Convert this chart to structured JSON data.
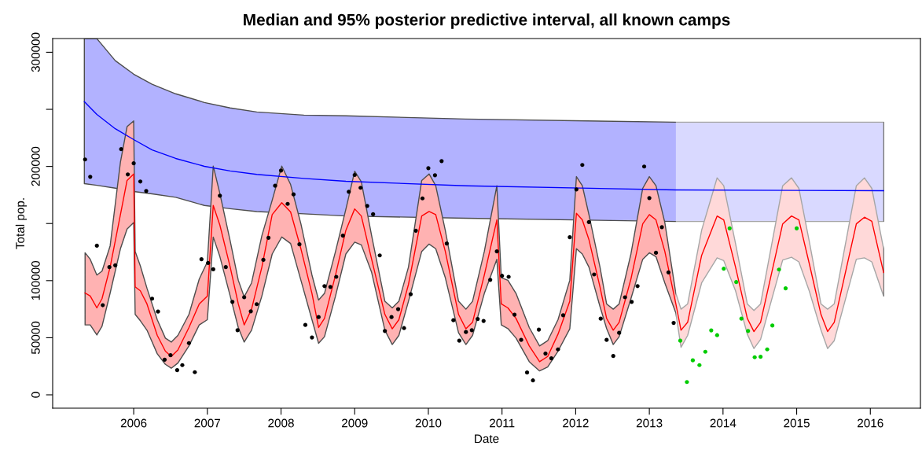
{
  "chart_data": {
    "type": "line",
    "title": "Median and 95% posterior predictive interval, all known camps",
    "xlabel": "Date",
    "ylabel": "Total pop.",
    "xlim": [
      2004.9,
      2016.68
    ],
    "ylim": [
      -11700,
      312000
    ],
    "xticks": [
      2006,
      2007,
      2008,
      2009,
      2010,
      2011,
      2012,
      2013,
      2014,
      2015,
      2016
    ],
    "yticks": [
      0,
      50000,
      100000,
      {
        "value": 150000,
        "label": null
      },
      200000,
      {
        "value": 250000,
        "label": null
      },
      300000
    ],
    "grid": false,
    "legend": false,
    "bands": [
      {
        "axis": "x",
        "from": 2013.36,
        "to": 2016.18,
        "color": "#ffffff"
      }
    ],
    "series": [
      {
        "color": "#0000ff",
        "x": [
          2005.33,
          2005.5,
          2005.75,
          2006.0,
          2006.25,
          2006.57,
          2006.96,
          2007.31,
          2007.67,
          2008.31,
          2008.88,
          2010.51,
          2013.36,
          2016.18
        ],
        "values": [
          256700,
          245500,
          233000,
          223500,
          214500,
          207000,
          200100,
          196000,
          193000,
          189500,
          187000,
          183000,
          179400,
          178700
        ],
        "upper": [
          312000,
          311900,
          292600,
          280800,
          271900,
          263600,
          256000,
          251200,
          247700,
          244900,
          244300,
          241500,
          238700,
          238700
        ],
        "lower": [
          184900,
          183500,
          181000,
          178000,
          176000,
          173000,
          165800,
          163000,
          160500,
          158500,
          156600,
          154600,
          151800,
          151800
        ]
      },
      {
        "color": "#ff0000",
        "x": [
          2005.34,
          2005.41,
          2005.5,
          2005.57,
          2005.68,
          2005.82,
          2005.91,
          2006.0,
          2006.02,
          2006.09,
          2006.18,
          2006.32,
          2006.43,
          2006.51,
          2006.6,
          2006.75,
          2006.89,
          2007.0,
          2007.08,
          2007.17,
          2007.31,
          2007.42,
          2007.5,
          2007.6,
          2007.74,
          2007.88,
          2008.01,
          2008.13,
          2008.27,
          2008.42,
          2008.51,
          2008.59,
          2008.74,
          2008.88,
          2009.0,
          2009.09,
          2009.23,
          2009.41,
          2009.51,
          2009.6,
          2009.73,
          2009.91,
          2010.01,
          2010.1,
          2010.23,
          2010.41,
          2010.51,
          2010.6,
          2010.76,
          2010.93,
          2010.99,
          2011.08,
          2011.19,
          2011.37,
          2011.51,
          2011.62,
          2011.76,
          2011.92,
          2012.01,
          2012.09,
          2012.18,
          2012.33,
          2012.42,
          2012.51,
          2012.59,
          2012.75,
          2012.91,
          2013.0,
          2013.09,
          2013.21,
          2013.36,
          2013.43,
          2013.52,
          2013.71,
          2013.92,
          2014.01,
          2014.17,
          2014.33,
          2014.42,
          2014.51,
          2014.81,
          2014.93,
          2015.03,
          2015.17,
          2015.33,
          2015.42,
          2015.51,
          2015.81,
          2015.92,
          2016.02,
          2016.18
        ],
        "upper": [
          124400,
          118700,
          104900,
          108300,
          130400,
          203800,
          234800,
          239900,
          125600,
          113000,
          93400,
          65800,
          49700,
          46200,
          52000,
          70400,
          101400,
          116400,
          200300,
          176200,
          134800,
          100300,
          85800,
          98000,
          139400,
          170400,
          200300,
          184200,
          149700,
          104900,
          83000,
          88800,
          125600,
          162400,
          195800,
          186500,
          139400,
          81900,
          76100,
          81900,
          111800,
          187700,
          193400,
          183100,
          144000,
          81900,
          75000,
          81900,
          125600,
          183100,
          102600,
          100300,
          88800,
          58900,
          42800,
          47400,
          65800,
          100300,
          191100,
          183100,
          157800,
          111800,
          79600,
          75000,
          79600,
          123300,
          180800,
          191100,
          183100,
          150900,
          88800,
          75000,
          79600,
          144200,
          190000,
          183100,
          132500,
          79600,
          73800,
          79600,
          183100,
          190000,
          180800,
          134800,
          79600,
          75000,
          79600,
          183100,
          190000,
          180800,
          127900
        ],
        "lower": [
          61200,
          61200,
          52400,
          60000,
          89000,
          127900,
          145100,
          150900,
          70400,
          64900,
          56600,
          35900,
          26700,
          23300,
          27800,
          42800,
          61200,
          65800,
          138200,
          121000,
          86500,
          58900,
          46200,
          56600,
          86500,
          123300,
          138200,
          132500,
          100300,
          65800,
          45100,
          50900,
          86500,
          123300,
          133700,
          131300,
          107200,
          56600,
          44000,
          52000,
          81900,
          125600,
          132000,
          127900,
          102600,
          54300,
          44000,
          52000,
          88800,
          118700,
          61200,
          58000,
          49700,
          29000,
          20900,
          24400,
          38200,
          57800,
          127900,
          123300,
          111800,
          77300,
          58000,
          44000,
          50900,
          84200,
          118700,
          124400,
          121000,
          98000,
          71600,
          41600,
          52000,
          98000,
          119900,
          117500,
          91100,
          53100,
          40500,
          48500,
          118000,
          120500,
          116400,
          91100,
          56600,
          40500,
          47400,
          118700,
          119900,
          116400,
          86500
        ],
        "values": [
          89200,
          86500,
          76100,
          84200,
          111800,
          157800,
          187700,
          193400,
          94500,
          91100,
          79600,
          52000,
          38200,
          33600,
          39300,
          58900,
          79600,
          86500,
          165800,
          148600,
          111800,
          79600,
          61200,
          75000,
          111800,
          157800,
          168200,
          160100,
          127900,
          88800,
          58900,
          66900,
          104900,
          144000,
          162800,
          156600,
          118700,
          70400,
          57800,
          65800,
          96600,
          156600,
          160600,
          157800,
          125600,
          70400,
          57800,
          63500,
          104900,
          153200,
          79600,
          76100,
          66900,
          42800,
          29000,
          33600,
          53100,
          81900,
          158900,
          153200,
          135900,
          94500,
          66900,
          56600,
          63500,
          101400,
          149700,
          157800,
          153200,
          125600,
          79600,
          56600,
          63500,
          122100,
          156600,
          153200,
          111800,
          66900,
          55400,
          63500,
          149700,
          156600,
          153200,
          115200,
          70400,
          55400,
          63500,
          149700,
          155500,
          152000,
          107200
        ]
      },
      {
        "type": "scatter",
        "color": "#000000",
        "marker": "circle",
        "x": [
          2005.34,
          2005.41,
          2005.5,
          2005.58,
          2005.67,
          2005.75,
          2005.83,
          2005.92,
          2006.0,
          2006.09,
          2006.17,
          2006.25,
          2006.33,
          2006.42,
          2006.5,
          2006.59,
          2006.66,
          2006.75,
          2006.83,
          2006.92,
          2007.01,
          2007.08,
          2007.17,
          2007.25,
          2007.34,
          2007.41,
          2007.5,
          2007.59,
          2007.67,
          2007.76,
          2007.83,
          2007.92,
          2008.0,
          2008.09,
          2008.17,
          2008.25,
          2008.33,
          2008.42,
          2008.51,
          2008.59,
          2008.67,
          2008.75,
          2008.84,
          2008.92,
          2009.0,
          2009.08,
          2009.17,
          2009.25,
          2009.34,
          2009.41,
          2009.5,
          2009.59,
          2009.67,
          2009.76,
          2009.83,
          2009.92,
          2010.0,
          2010.09,
          2010.18,
          2010.25,
          2010.34,
          2010.42,
          2010.51,
          2010.59,
          2010.67,
          2010.75,
          2010.84,
          2010.93,
          2011.0,
          2011.09,
          2011.17,
          2011.26,
          2011.34,
          2011.42,
          2011.5,
          2011.59,
          2011.67,
          2011.76,
          2011.83,
          2011.92,
          2012.01,
          2012.09,
          2012.18,
          2012.25,
          2012.34,
          2012.42,
          2012.51,
          2012.59,
          2012.67,
          2012.76,
          2012.84,
          2012.93,
          2013.0,
          2013.09,
          2013.17,
          2013.26,
          2013.33
        ],
        "values": [
          206100,
          190900,
          130600,
          78500,
          111800,
          113400,
          215100,
          193000,
          202700,
          186800,
          178500,
          84200,
          72900,
          30800,
          34700,
          21600,
          26000,
          45300,
          19800,
          118700,
          115400,
          109900,
          174400,
          111800,
          81400,
          56600,
          85400,
          73100,
          79400,
          118200,
          137500,
          183100,
          196400,
          167200,
          175500,
          131800,
          61200,
          50200,
          68100,
          95200,
          94500,
          103300,
          139400,
          177800,
          192500,
          181300,
          165400,
          158200,
          122100,
          55900,
          68100,
          75000,
          58400,
          88100,
          143700,
          172000,
          198500,
          192300,
          204700,
          132500,
          65300,
          47400,
          55000,
          56600,
          66400,
          64700,
          100700,
          125600,
          104200,
          103300,
          70200,
          48100,
          19500,
          12600,
          57100,
          36100,
          31900,
          39800,
          69700,
          138000,
          179900,
          201300,
          151300,
          105400,
          66700,
          48100,
          34000,
          54300,
          85400,
          81400,
          95200,
          199900,
          172300,
          124400,
          146800,
          107200,
          63000
        ]
      },
      {
        "type": "scatter",
        "color": "#00cc00",
        "marker": "circle",
        "x": [
          2013.42,
          2013.51,
          2013.59,
          2013.68,
          2013.76,
          2013.84,
          2013.92,
          2014.01,
          2014.09,
          2014.18,
          2014.25,
          2014.34,
          2014.43,
          2014.51,
          2014.6,
          2014.67,
          2014.76,
          2014.85,
          2015.0
        ],
        "values": [
          47400,
          11200,
          30200,
          26000,
          37700,
          56400,
          52200,
          110400,
          145800,
          98700,
          66700,
          55900,
          32900,
          33300,
          39800,
          60700,
          109700,
          93200,
          145800
        ]
      }
    ]
  }
}
